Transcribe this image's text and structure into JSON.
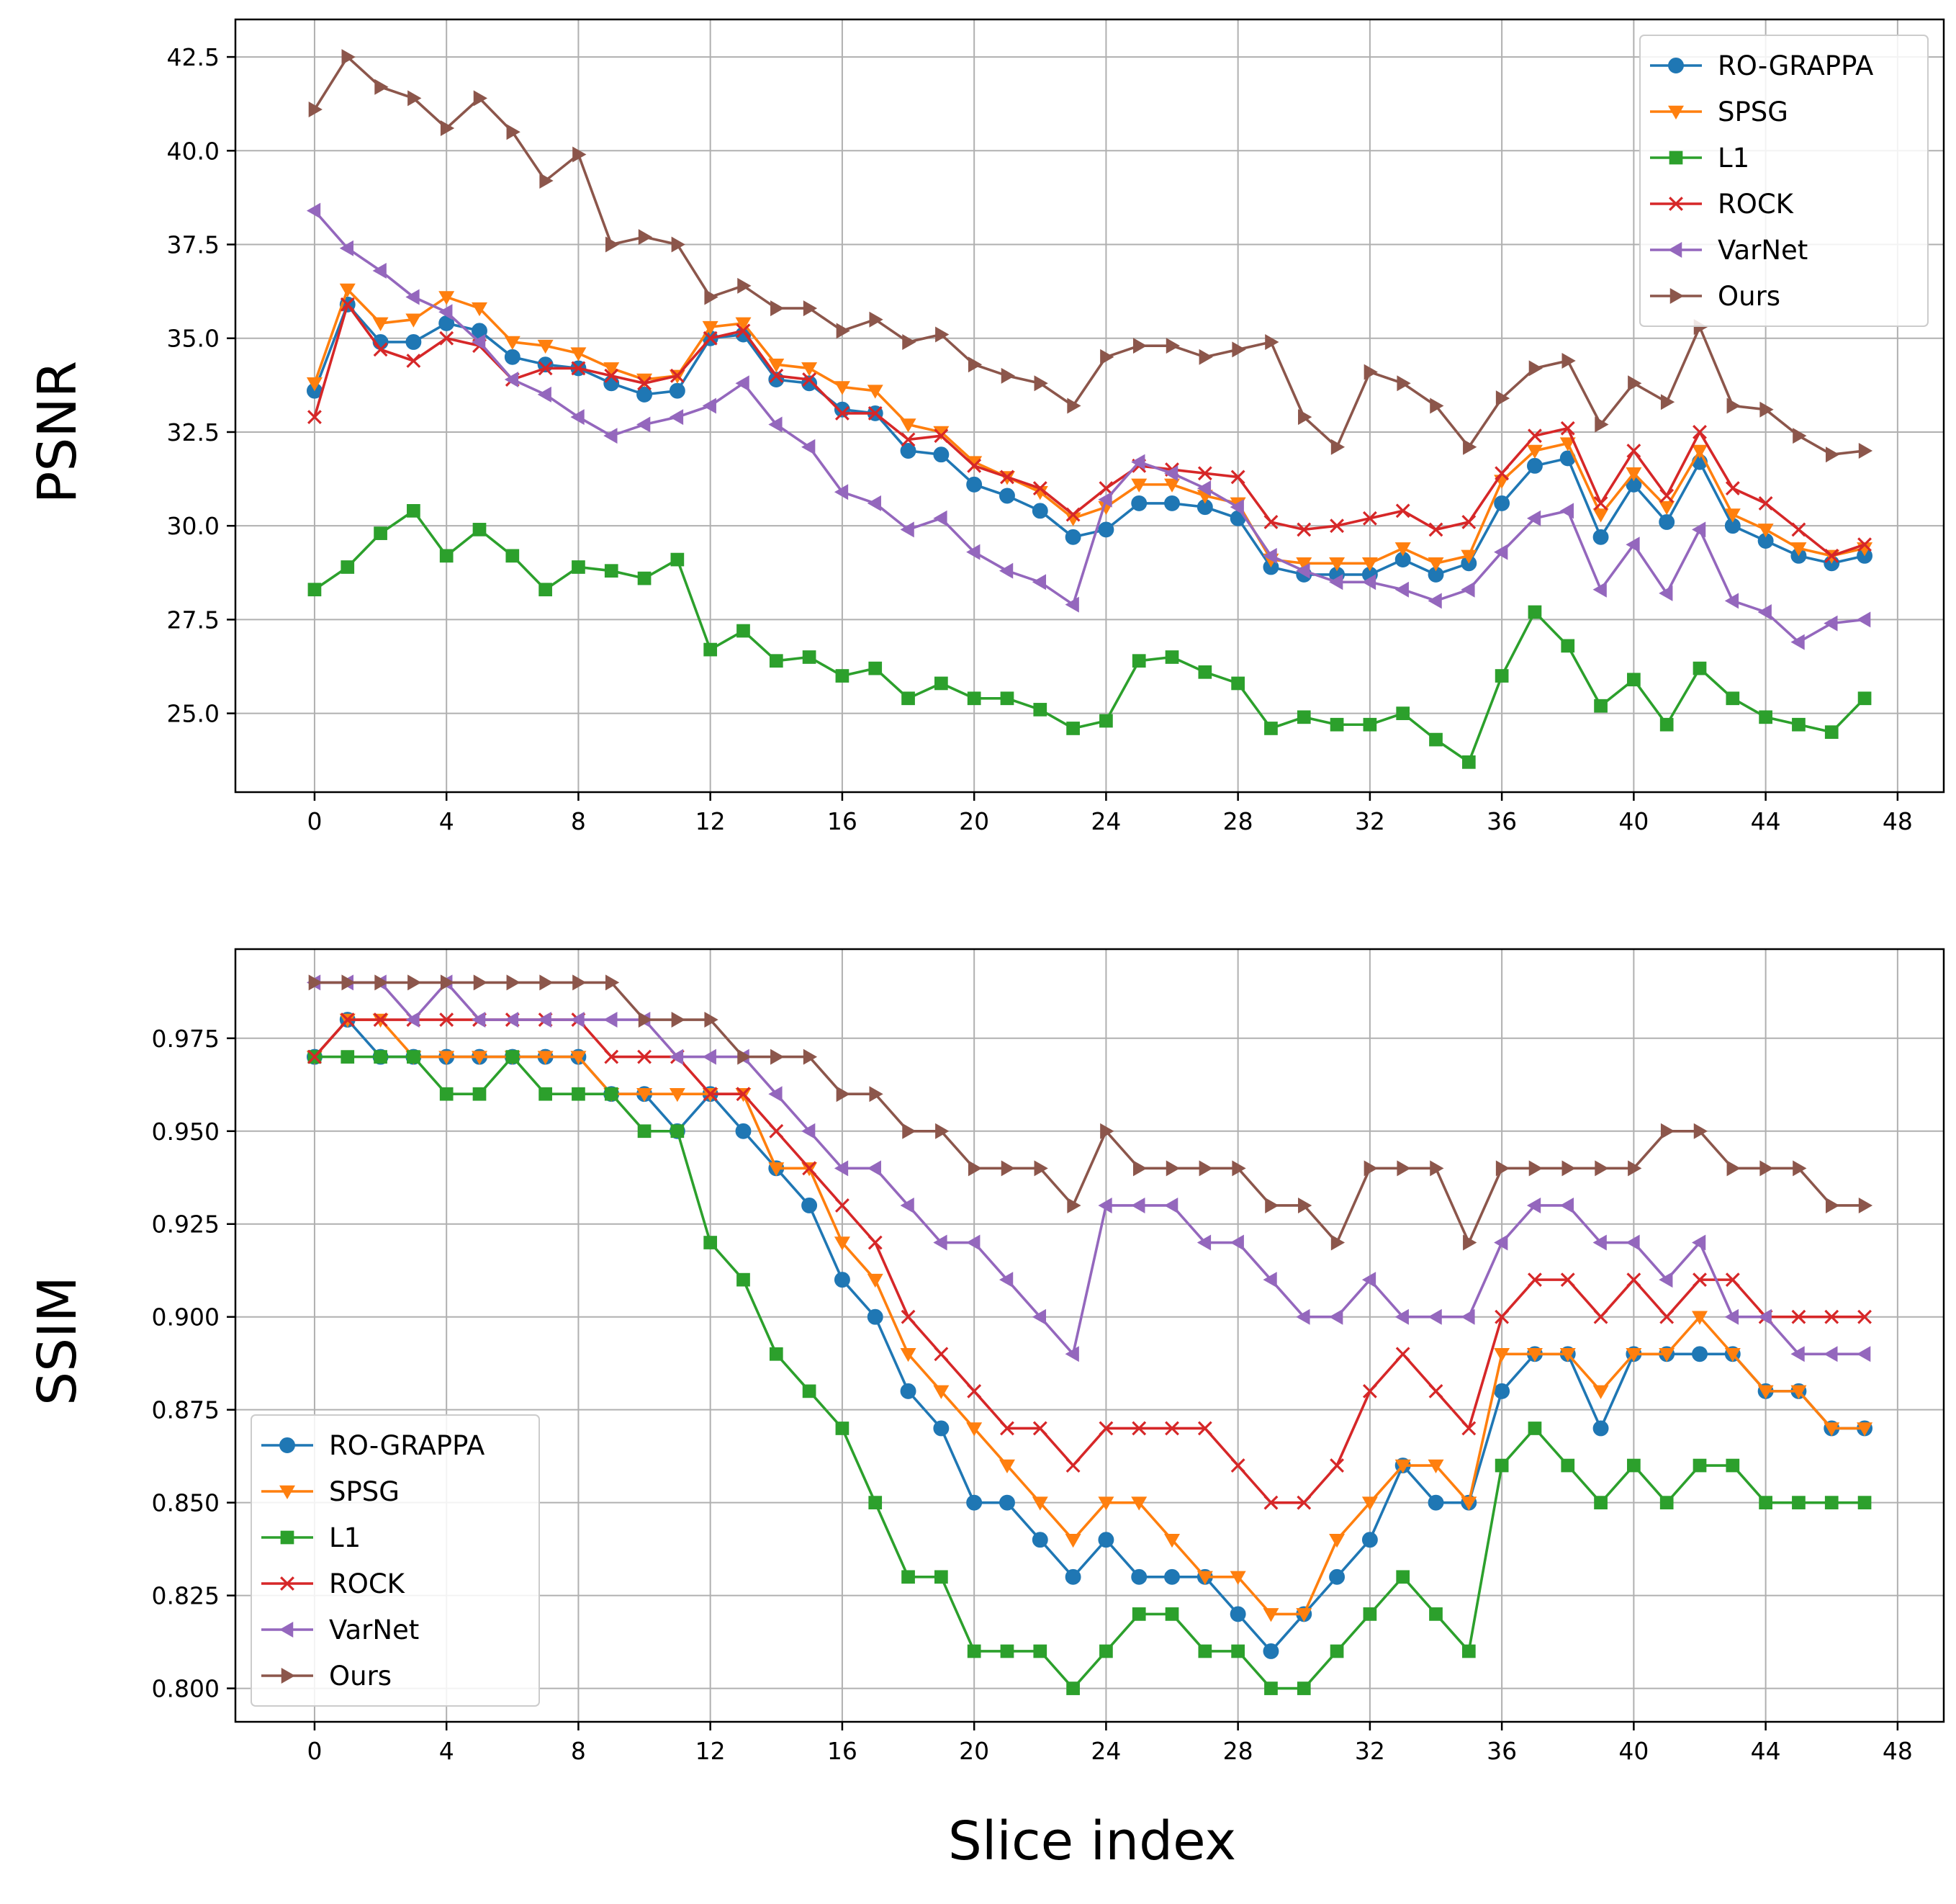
{
  "xlabel": "Slice index",
  "colors": {
    "RO-GRAPPA": "#1f77b4",
    "SPSG": "#ff7f0e",
    "L1": "#2ca02c",
    "ROCK": "#d62728",
    "VarNet": "#9467bd",
    "Ours": "#8c564b"
  },
  "chart_data": [
    {
      "type": "line",
      "title": "",
      "ylabel": "PSNR",
      "xlabel": "",
      "xlim": [
        -2.4,
        49.4
      ],
      "ylim": [
        22.9,
        43.5
      ],
      "xticks": [
        0,
        4,
        8,
        12,
        16,
        20,
        24,
        28,
        32,
        36,
        40,
        44,
        48
      ],
      "yticks": [
        25.0,
        27.5,
        30.0,
        32.5,
        35.0,
        37.5,
        40.0,
        42.5
      ],
      "ytick_labels": [
        "25.0",
        "27.5",
        "30.0",
        "32.5",
        "35.0",
        "37.5",
        "40.0",
        "42.5"
      ],
      "grid": true,
      "legend_position": "top-right",
      "x": [
        0,
        1,
        2,
        3,
        4,
        5,
        6,
        7,
        8,
        9,
        10,
        11,
        12,
        13,
        14,
        15,
        16,
        17,
        18,
        19,
        20,
        21,
        22,
        23,
        24,
        25,
        26,
        27,
        28,
        29,
        30,
        31,
        32,
        33,
        34,
        35,
        36,
        37,
        38,
        39,
        40,
        41,
        42,
        43,
        44,
        45,
        46,
        47
      ],
      "series": [
        {
          "name": "RO-GRAPPA",
          "marker": "circle",
          "values": [
            33.6,
            35.9,
            34.9,
            34.9,
            35.4,
            35.2,
            34.5,
            34.3,
            34.2,
            33.8,
            33.5,
            33.6,
            35.0,
            35.1,
            33.9,
            33.8,
            33.1,
            33.0,
            32.0,
            31.9,
            31.1,
            30.8,
            30.4,
            29.7,
            29.9,
            30.6,
            30.6,
            30.5,
            30.2,
            28.9,
            28.7,
            28.7,
            28.7,
            29.1,
            28.7,
            29.0,
            30.6,
            31.6,
            31.8,
            29.7,
            31.1,
            30.1,
            31.7,
            30.0,
            29.6,
            29.2,
            29.0,
            29.2
          ]
        },
        {
          "name": "SPSG",
          "marker": "triangle-down",
          "values": [
            33.8,
            36.3,
            35.4,
            35.5,
            36.1,
            35.8,
            34.9,
            34.8,
            34.6,
            34.2,
            33.9,
            34.0,
            35.3,
            35.4,
            34.3,
            34.2,
            33.7,
            33.6,
            32.7,
            32.5,
            31.7,
            31.3,
            30.9,
            30.2,
            30.5,
            31.1,
            31.1,
            30.8,
            30.6,
            29.1,
            29.0,
            29.0,
            29.0,
            29.4,
            29.0,
            29.2,
            31.2,
            32.0,
            32.2,
            30.3,
            31.4,
            30.5,
            32.0,
            30.3,
            29.9,
            29.4,
            29.2,
            29.4
          ]
        },
        {
          "name": "L1",
          "marker": "square",
          "values": [
            28.3,
            28.9,
            29.8,
            30.4,
            29.2,
            29.9,
            29.2,
            28.3,
            28.9,
            28.8,
            28.6,
            29.1,
            26.7,
            27.2,
            26.4,
            26.5,
            26.0,
            26.2,
            25.4,
            25.8,
            25.4,
            25.4,
            25.1,
            24.6,
            24.8,
            26.4,
            26.5,
            26.1,
            25.8,
            24.6,
            24.9,
            24.7,
            24.7,
            25.0,
            24.3,
            23.7,
            26.0,
            27.7,
            26.8,
            25.2,
            25.9,
            24.7,
            26.2,
            25.4,
            24.9,
            24.7,
            24.5,
            25.4
          ]
        },
        {
          "name": "ROCK",
          "marker": "x",
          "values": [
            32.9,
            35.9,
            34.7,
            34.4,
            35.0,
            34.8,
            33.9,
            34.2,
            34.2,
            34.0,
            33.8,
            34.0,
            35.0,
            35.2,
            34.0,
            33.9,
            33.0,
            33.0,
            32.3,
            32.4,
            31.6,
            31.3,
            31.0,
            30.3,
            31.0,
            31.6,
            31.5,
            31.4,
            31.3,
            30.1,
            29.9,
            30.0,
            30.2,
            30.4,
            29.9,
            30.1,
            31.4,
            32.4,
            32.6,
            30.6,
            32.0,
            30.8,
            32.5,
            31.0,
            30.6,
            29.9,
            29.2,
            29.5
          ]
        },
        {
          "name": "VarNet",
          "marker": "triangle-left",
          "values": [
            38.4,
            37.4,
            36.8,
            36.1,
            35.7,
            34.9,
            33.9,
            33.5,
            32.9,
            32.4,
            32.7,
            32.9,
            33.2,
            33.8,
            32.7,
            32.1,
            30.9,
            30.6,
            29.9,
            30.2,
            29.3,
            28.8,
            28.5,
            27.9,
            30.7,
            31.7,
            31.4,
            31.0,
            30.5,
            29.2,
            28.8,
            28.5,
            28.5,
            28.3,
            28.0,
            28.3,
            29.3,
            30.2,
            30.4,
            28.3,
            29.5,
            28.2,
            29.9,
            28.0,
            27.7,
            26.9,
            27.4,
            27.5
          ]
        },
        {
          "name": "Ours",
          "marker": "triangle-right",
          "values": [
            41.1,
            42.5,
            41.7,
            41.4,
            40.6,
            41.4,
            40.5,
            39.2,
            39.9,
            37.5,
            37.7,
            37.5,
            36.1,
            36.4,
            35.8,
            35.8,
            35.2,
            35.5,
            34.9,
            35.1,
            34.3,
            34.0,
            33.8,
            33.2,
            34.5,
            34.8,
            34.8,
            34.5,
            34.7,
            34.9,
            32.9,
            32.1,
            34.1,
            33.8,
            33.2,
            32.1,
            33.4,
            34.2,
            34.4,
            32.7,
            33.8,
            33.3,
            35.3,
            33.2,
            33.1,
            32.4,
            31.9,
            32.0
          ]
        }
      ]
    },
    {
      "type": "line",
      "title": "",
      "ylabel": "SSIM",
      "xlabel": "Slice index",
      "xlim": [
        -2.4,
        49.4
      ],
      "ylim": [
        0.791,
        0.999
      ],
      "xticks": [
        0,
        4,
        8,
        12,
        16,
        20,
        24,
        28,
        32,
        36,
        40,
        44,
        48
      ],
      "yticks": [
        0.8,
        0.825,
        0.85,
        0.875,
        0.9,
        0.925,
        0.95,
        0.975
      ],
      "ytick_labels": [
        "0.800",
        "0.825",
        "0.850",
        "0.875",
        "0.900",
        "0.925",
        "0.950",
        "0.975"
      ],
      "grid": true,
      "legend_position": "bottom-left",
      "x": [
        0,
        1,
        2,
        3,
        4,
        5,
        6,
        7,
        8,
        9,
        10,
        11,
        12,
        13,
        14,
        15,
        16,
        17,
        18,
        19,
        20,
        21,
        22,
        23,
        24,
        25,
        26,
        27,
        28,
        29,
        30,
        31,
        32,
        33,
        34,
        35,
        36,
        37,
        38,
        39,
        40,
        41,
        42,
        43,
        44,
        45,
        46,
        47
      ],
      "series": [
        {
          "name": "RO-GRAPPA",
          "marker": "circle",
          "values": [
            0.97,
            0.98,
            0.97,
            0.97,
            0.97,
            0.97,
            0.97,
            0.97,
            0.97,
            0.96,
            0.96,
            0.95,
            0.96,
            0.95,
            0.94,
            0.93,
            0.91,
            0.9,
            0.88,
            0.87,
            0.85,
            0.85,
            0.84,
            0.83,
            0.84,
            0.83,
            0.83,
            0.83,
            0.82,
            0.81,
            0.82,
            0.83,
            0.84,
            0.86,
            0.85,
            0.85,
            0.88,
            0.89,
            0.89,
            0.87,
            0.89,
            0.89,
            0.89,
            0.89,
            0.88,
            0.88,
            0.87,
            0.87
          ]
        },
        {
          "name": "SPSG",
          "marker": "triangle-down",
          "values": [
            0.97,
            0.98,
            0.98,
            0.97,
            0.97,
            0.97,
            0.97,
            0.97,
            0.97,
            0.96,
            0.96,
            0.96,
            0.96,
            0.96,
            0.94,
            0.94,
            0.92,
            0.91,
            0.89,
            0.88,
            0.87,
            0.86,
            0.85,
            0.84,
            0.85,
            0.85,
            0.84,
            0.83,
            0.83,
            0.82,
            0.82,
            0.84,
            0.85,
            0.86,
            0.86,
            0.85,
            0.89,
            0.89,
            0.89,
            0.88,
            0.89,
            0.89,
            0.9,
            0.89,
            0.88,
            0.88,
            0.87,
            0.87
          ]
        },
        {
          "name": "L1",
          "marker": "square",
          "values": [
            0.97,
            0.97,
            0.97,
            0.97,
            0.96,
            0.96,
            0.97,
            0.96,
            0.96,
            0.96,
            0.95,
            0.95,
            0.92,
            0.91,
            0.89,
            0.88,
            0.87,
            0.85,
            0.83,
            0.83,
            0.81,
            0.81,
            0.81,
            0.8,
            0.81,
            0.82,
            0.82,
            0.81,
            0.81,
            0.8,
            0.8,
            0.81,
            0.82,
            0.83,
            0.82,
            0.81,
            0.86,
            0.87,
            0.86,
            0.85,
            0.86,
            0.85,
            0.86,
            0.86,
            0.85,
            0.85,
            0.85,
            0.85
          ]
        },
        {
          "name": "ROCK",
          "marker": "x",
          "values": [
            0.97,
            0.98,
            0.98,
            0.98,
            0.98,
            0.98,
            0.98,
            0.98,
            0.98,
            0.97,
            0.97,
            0.97,
            0.96,
            0.96,
            0.95,
            0.94,
            0.93,
            0.92,
            0.9,
            0.89,
            0.88,
            0.87,
            0.87,
            0.86,
            0.87,
            0.87,
            0.87,
            0.87,
            0.86,
            0.85,
            0.85,
            0.86,
            0.88,
            0.89,
            0.88,
            0.87,
            0.9,
            0.91,
            0.91,
            0.9,
            0.91,
            0.9,
            0.91,
            0.91,
            0.9,
            0.9,
            0.9,
            0.9
          ]
        },
        {
          "name": "VarNet",
          "marker": "triangle-left",
          "values": [
            0.99,
            0.99,
            0.99,
            0.98,
            0.99,
            0.98,
            0.98,
            0.98,
            0.98,
            0.98,
            0.98,
            0.97,
            0.97,
            0.97,
            0.96,
            0.95,
            0.94,
            0.94,
            0.93,
            0.92,
            0.92,
            0.91,
            0.9,
            0.89,
            0.93,
            0.93,
            0.93,
            0.92,
            0.92,
            0.91,
            0.9,
            0.9,
            0.91,
            0.9,
            0.9,
            0.9,
            0.92,
            0.93,
            0.93,
            0.92,
            0.92,
            0.91,
            0.92,
            0.9,
            0.9,
            0.89,
            0.89,
            0.89
          ]
        },
        {
          "name": "Ours",
          "marker": "triangle-right",
          "values": [
            0.99,
            0.99,
            0.99,
            0.99,
            0.99,
            0.99,
            0.99,
            0.99,
            0.99,
            0.99,
            0.98,
            0.98,
            0.98,
            0.97,
            0.97,
            0.97,
            0.96,
            0.96,
            0.95,
            0.95,
            0.94,
            0.94,
            0.94,
            0.93,
            0.95,
            0.94,
            0.94,
            0.94,
            0.94,
            0.93,
            0.93,
            0.92,
            0.94,
            0.94,
            0.94,
            0.92,
            0.94,
            0.94,
            0.94,
            0.94,
            0.94,
            0.95,
            0.95,
            0.94,
            0.94,
            0.94,
            0.93,
            0.93
          ]
        }
      ]
    }
  ]
}
